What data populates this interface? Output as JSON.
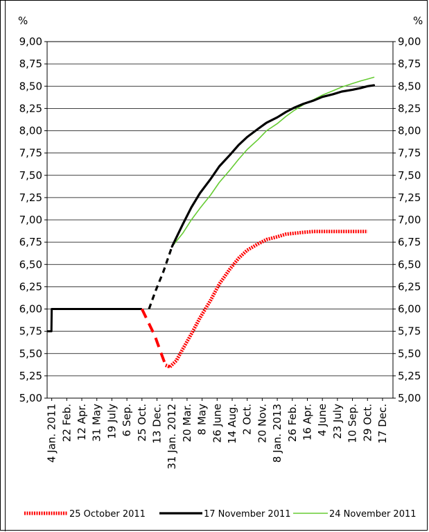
{
  "chart_data": {
    "type": "line",
    "title": "",
    "ylabel_left": "%",
    "ylabel_right": "%",
    "xlabel": "",
    "ylim": [
      5.0,
      9.0
    ],
    "yticks": [
      "5,00",
      "5,25",
      "5,50",
      "5,75",
      "6,00",
      "6,25",
      "6,50",
      "6,75",
      "7,00",
      "7,25",
      "7,50",
      "7,75",
      "8,00",
      "8,25",
      "8,50",
      "8,75",
      "9,00"
    ],
    "grid": true,
    "legend_position": "bottom",
    "x_axis_type": "date",
    "xlim": [
      "2010-12-20",
      "2014-01-20"
    ],
    "x_tick_dates": [
      "2011-01-04",
      "2011-02-22",
      "2011-04-12",
      "2011-05-31",
      "2011-07-19",
      "2011-09-06",
      "2011-10-25",
      "2011-12-13",
      "2012-01-31",
      "2012-03-20",
      "2012-05-08",
      "2012-06-26",
      "2012-08-14",
      "2012-10-02",
      "2012-11-20",
      "2013-01-08",
      "2013-02-26",
      "2013-04-16",
      "2013-06-04",
      "2013-07-23",
      "2013-09-10",
      "2013-10-29",
      "2013-12-17"
    ],
    "x_tick_labels": [
      "4 Jan. 2011",
      "22 Feb.",
      "12 Apr.",
      "31 May",
      "19 July",
      "6 Sep.",
      "25 Oct.",
      "13 Dec.",
      "31 Jan. 2012",
      "20 Mar.",
      "8 May",
      "26 June",
      "14 Aug.",
      "2 Oct.",
      "20 Nov.",
      "8 Jan. 2013",
      "26 Feb.",
      "16 Apr.",
      "4 June",
      "23 July",
      "10 Sep.",
      "29 Oct.",
      "17 Dec."
    ],
    "history": {
      "color": "#000000",
      "x": [
        "2010-12-20",
        "2011-01-03",
        "2011-01-04",
        "2011-10-25"
      ],
      "y": [
        5.75,
        5.75,
        6.0,
        6.0
      ]
    },
    "series": [
      {
        "name": "25 October 2011",
        "color": "#ff0000",
        "style": "dotted-thick",
        "x": [
          "2011-10-25",
          "2011-11-15",
          "2011-12-06",
          "2011-12-27",
          "2012-01-10",
          "2012-01-24",
          "2012-02-14",
          "2012-03-06",
          "2012-04-03",
          "2012-05-01",
          "2012-06-05",
          "2012-07-03",
          "2012-08-07",
          "2012-09-04",
          "2012-10-02",
          "2012-11-06",
          "2012-12-04",
          "2013-01-08",
          "2013-02-05",
          "2013-03-05",
          "2013-04-02",
          "2013-05-07",
          "2013-06-04",
          "2013-07-09",
          "2013-08-06",
          "2013-09-10",
          "2013-10-08",
          "2013-10-29"
        ],
        "y": [
          6.0,
          5.85,
          5.7,
          5.5,
          5.37,
          5.35,
          5.42,
          5.55,
          5.72,
          5.9,
          6.1,
          6.28,
          6.45,
          6.57,
          6.66,
          6.73,
          6.78,
          6.81,
          6.84,
          6.85,
          6.86,
          6.87,
          6.87,
          6.87,
          6.87,
          6.87,
          6.87,
          6.87
        ]
      },
      {
        "name": "17 November 2011",
        "color": "#000000",
        "style": "solid-thick",
        "x": [
          "2011-11-17",
          "2011-12-08",
          "2012-01-03",
          "2012-01-31",
          "2012-03-06",
          "2012-04-03",
          "2012-05-01",
          "2012-06-05",
          "2012-07-03",
          "2012-08-07",
          "2012-09-04",
          "2012-10-02",
          "2012-11-06",
          "2012-12-04",
          "2013-01-08",
          "2013-02-05",
          "2013-03-05",
          "2013-04-02",
          "2013-05-07",
          "2013-06-04",
          "2013-07-09",
          "2013-08-06",
          "2013-09-10",
          "2013-10-08",
          "2013-10-29",
          "2013-11-19"
        ],
        "y": [
          6.0,
          6.2,
          6.42,
          6.7,
          6.95,
          7.14,
          7.3,
          7.46,
          7.6,
          7.73,
          7.84,
          7.93,
          8.02,
          8.09,
          8.15,
          8.21,
          8.26,
          8.3,
          8.34,
          8.38,
          8.41,
          8.44,
          8.46,
          8.48,
          8.5,
          8.51
        ]
      },
      {
        "name": "24 November 2011",
        "color": "#66cc33",
        "style": "solid-thin",
        "x": [
          "2011-11-17",
          "2011-12-08",
          "2012-01-03",
          "2012-01-31",
          "2012-03-06",
          "2012-04-03",
          "2012-05-01",
          "2012-06-05",
          "2012-07-03",
          "2012-08-07",
          "2012-09-04",
          "2012-10-02",
          "2012-11-06",
          "2012-12-04",
          "2013-01-08",
          "2013-02-05",
          "2013-03-05",
          "2013-04-02",
          "2013-05-07",
          "2013-06-04",
          "2013-07-09",
          "2013-08-06",
          "2013-09-10",
          "2013-10-08",
          "2013-10-29",
          "2013-11-19"
        ],
        "y": [
          6.0,
          6.2,
          6.42,
          6.7,
          6.85,
          7.0,
          7.13,
          7.28,
          7.42,
          7.56,
          7.68,
          7.79,
          7.9,
          8.0,
          8.08,
          8.16,
          8.23,
          8.29,
          8.35,
          8.4,
          8.45,
          8.49,
          8.53,
          8.56,
          8.58,
          8.6
        ]
      }
    ]
  }
}
